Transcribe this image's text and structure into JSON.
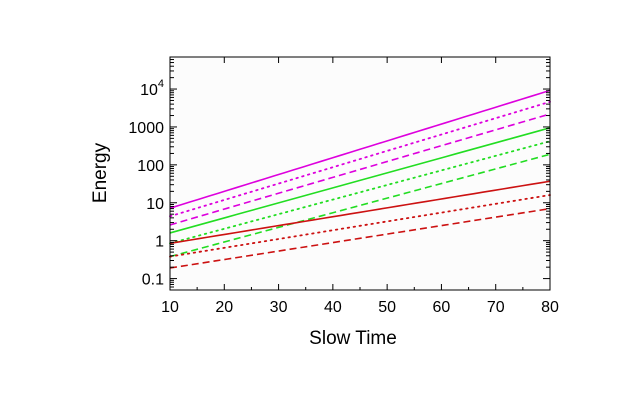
{
  "chart_data": {
    "type": "line",
    "title": "",
    "xlabel": "Slow Time",
    "ylabel": "Energy",
    "xlim": [
      10,
      80
    ],
    "ylim": [
      0.05,
      70000
    ],
    "yscale": "log",
    "grid": false,
    "legend": "none",
    "x_ticks": [
      {
        "value": 10,
        "label": "10"
      },
      {
        "value": 20,
        "label": "20"
      },
      {
        "value": 30,
        "label": "30"
      },
      {
        "value": 40,
        "label": "40"
      },
      {
        "value": 50,
        "label": "50"
      },
      {
        "value": 60,
        "label": "60"
      },
      {
        "value": 70,
        "label": "70"
      },
      {
        "value": 80,
        "label": "80"
      }
    ],
    "y_ticks": [
      {
        "value": 0.1,
        "base": "0.1",
        "sup": ""
      },
      {
        "value": 1,
        "base": "1",
        "sup": ""
      },
      {
        "value": 10,
        "base": "10",
        "sup": ""
      },
      {
        "value": 100,
        "base": "100",
        "sup": ""
      },
      {
        "value": 1000,
        "base": "1000",
        "sup": ""
      },
      {
        "value": 10000,
        "base": "10",
        "sup": "4"
      }
    ],
    "series": [
      {
        "name": "magenta-solid",
        "color": "#dd00dd",
        "dash": "solid",
        "x": [
          10,
          80
        ],
        "y": [
          7.2,
          9200
        ]
      },
      {
        "name": "magenta-dotted",
        "color": "#dd00dd",
        "dash": "dotted",
        "x": [
          10,
          80
        ],
        "y": [
          4.4,
          4600
        ]
      },
      {
        "name": "magenta-dashed",
        "color": "#dd00dd",
        "dash": "dashed",
        "x": [
          10,
          80
        ],
        "y": [
          2.6,
          2200
        ]
      },
      {
        "name": "green-solid",
        "color": "#22dd22",
        "dash": "solid",
        "x": [
          10,
          80
        ],
        "y": [
          1.6,
          950
        ]
      },
      {
        "name": "green-dotted",
        "color": "#22dd22",
        "dash": "dotted",
        "x": [
          10,
          80
        ],
        "y": [
          0.85,
          420
        ]
      },
      {
        "name": "green-dashed",
        "color": "#22dd22",
        "dash": "dashed",
        "x": [
          10,
          80
        ],
        "y": [
          0.38,
          190
        ]
      },
      {
        "name": "red-solid",
        "color": "#cc1111",
        "dash": "solid",
        "x": [
          10,
          80
        ],
        "y": [
          0.85,
          37
        ]
      },
      {
        "name": "red-dotted",
        "color": "#cc1111",
        "dash": "dotted",
        "x": [
          10,
          80
        ],
        "y": [
          0.38,
          16
        ]
      },
      {
        "name": "red-dashed",
        "color": "#cc1111",
        "dash": "dashed",
        "x": [
          10,
          80
        ],
        "y": [
          0.19,
          7
        ]
      }
    ]
  }
}
